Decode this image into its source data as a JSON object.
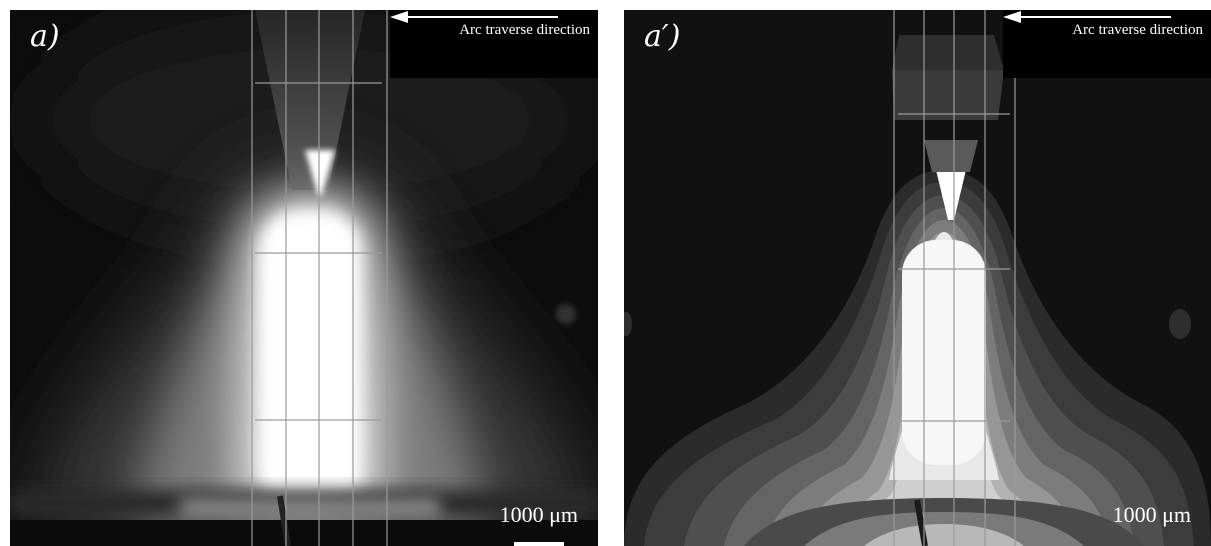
{
  "panels": [
    {
      "label": "a)",
      "annotation": "Arc traverse direction",
      "scale_text": "1000 μm",
      "style": "smooth grayscale"
    },
    {
      "label": "a′)",
      "annotation": "Arc traverse direction",
      "scale_text": "1000 μm",
      "style": "posterized contour levels"
    }
  ],
  "colors": {
    "background": "#0d0d0d",
    "core": "#ffffff",
    "grid_line": "#9a9a9a",
    "annotation_box": "#000000",
    "text": "#ffffff"
  },
  "icons": {
    "direction": "left-arrow-icon"
  }
}
